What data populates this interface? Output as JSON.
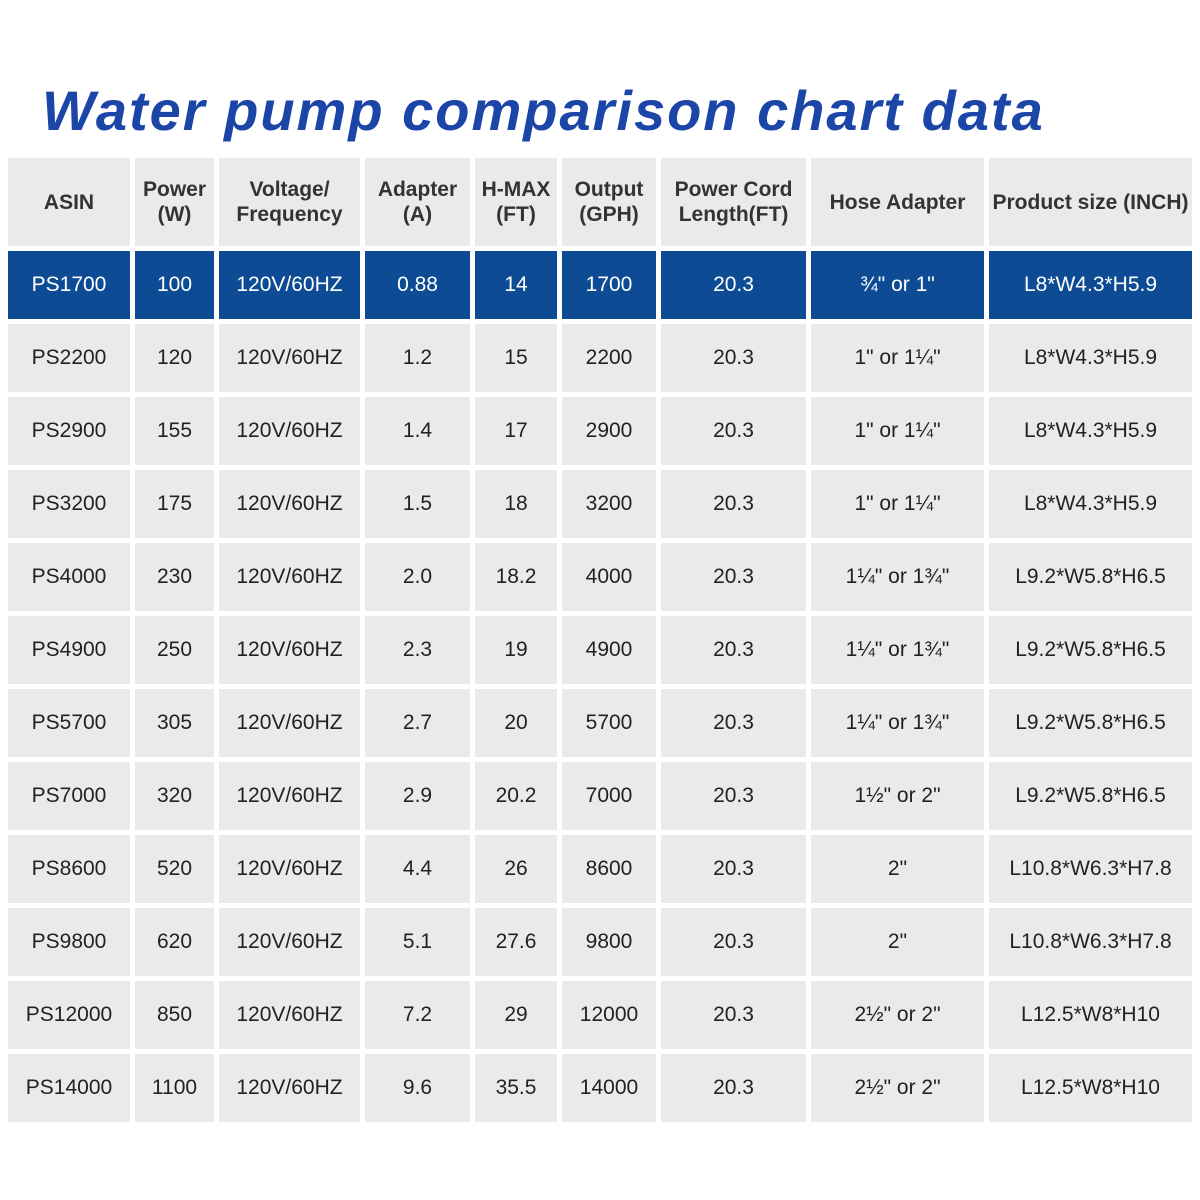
{
  "title": "Water pump comparison chart data",
  "chart_data": {
    "type": "table",
    "title": "Water pump comparison chart data",
    "columns": [
      "ASIN",
      "Power (W)",
      "Voltage/ Frequency",
      "Adapter (A)",
      "H-MAX (FT)",
      "Output (GPH)",
      "Power Cord Length(FT)",
      "Hose Adapter",
      "Product size (INCH)"
    ],
    "highlight_color": "#0d4c94",
    "rows": [
      [
        "PS1700",
        "100",
        "120V/60HZ",
        "0.88",
        "14",
        "1700",
        "20.3",
        "¾\" or 1\"",
        "L8*W4.3*H5.9"
      ],
      [
        "PS2200",
        "120",
        "120V/60HZ",
        "1.2",
        "15",
        "2200",
        "20.3",
        "1\" or 1¼\"",
        "L8*W4.3*H5.9"
      ],
      [
        "PS2900",
        "155",
        "120V/60HZ",
        "1.4",
        "17",
        "2900",
        "20.3",
        "1\" or 1¼\"",
        "L8*W4.3*H5.9"
      ],
      [
        "PS3200",
        "175",
        "120V/60HZ",
        "1.5",
        "18",
        "3200",
        "20.3",
        "1\" or 1¼\"",
        "L8*W4.3*H5.9"
      ],
      [
        "PS4000",
        "230",
        "120V/60HZ",
        "2.0",
        "18.2",
        "4000",
        "20.3",
        "1¼\" or 1¾\"",
        "L9.2*W5.8*H6.5"
      ],
      [
        "PS4900",
        "250",
        "120V/60HZ",
        "2.3",
        "19",
        "4900",
        "20.3",
        "1¼\" or 1¾\"",
        "L9.2*W5.8*H6.5"
      ],
      [
        "PS5700",
        "305",
        "120V/60HZ",
        "2.7",
        "20",
        "5700",
        "20.3",
        "1¼\" or 1¾\"",
        "L9.2*W5.8*H6.5"
      ],
      [
        "PS7000",
        "320",
        "120V/60HZ",
        "2.9",
        "20.2",
        "7000",
        "20.3",
        "1½\" or 2\"",
        "L9.2*W5.8*H6.5"
      ],
      [
        "PS8600",
        "520",
        "120V/60HZ",
        "4.4",
        "26",
        "8600",
        "20.3",
        "2\"",
        "L10.8*W6.3*H7.8"
      ],
      [
        "PS9800",
        "620",
        "120V/60HZ",
        "5.1",
        "27.6",
        "9800",
        "20.3",
        "2\"",
        "L10.8*W6.3*H7.8"
      ],
      [
        "PS12000",
        "850",
        "120V/60HZ",
        "7.2",
        "29",
        "12000",
        "20.3",
        "2½\" or 2\"",
        "L12.5*W8*H10"
      ],
      [
        "PS14000",
        "1100",
        "120V/60HZ",
        "9.6",
        "35.5",
        "14000",
        "20.3",
        "2½\" or 2\"",
        "L12.5*W8*H10"
      ]
    ]
  }
}
